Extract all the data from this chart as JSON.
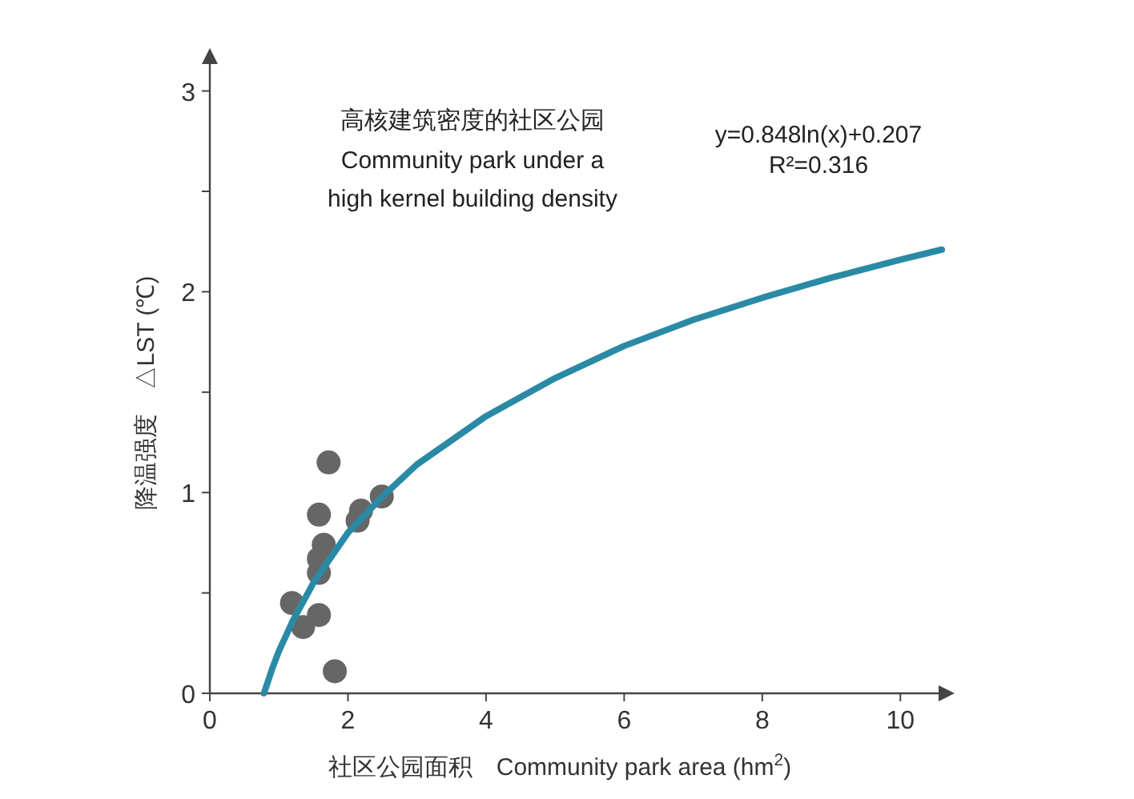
{
  "chart_data": {
    "type": "scatter",
    "xlabel": "社区公园面积　Community park area (hm$^{2}$)",
    "ylabel": "降温强度　△LST (℃)",
    "annotations": [
      "高核建筑密度的社区公园",
      "Community park under a",
      "high kernel building density",
      "y=0.848ln(x)+0.207",
      "R²=0.316"
    ],
    "xlim": [
      0,
      10.6
    ],
    "ylim": [
      0,
      3.15
    ],
    "xticks": [
      0,
      2,
      4,
      6,
      8,
      10
    ],
    "yticks": [
      0,
      {
        "value": 0.5,
        "label": null
      },
      1,
      {
        "value": 1.5,
        "label": null
      },
      2,
      {
        "value": 2.5,
        "label": null
      },
      3
    ],
    "grid": false,
    "series": [
      {
        "marker": "circle",
        "color": "#666666",
        "x": [
          1.19,
          1.35,
          1.58,
          1.58,
          1.58,
          1.58,
          1.65,
          1.72,
          1.81,
          2.14,
          2.19,
          2.49
        ],
        "values": [
          0.45,
          0.33,
          0.39,
          0.6,
          0.67,
          0.89,
          0.74,
          1.15,
          0.11,
          0.86,
          0.91,
          0.98
        ]
      },
      {
        "type": "line",
        "marker": "none",
        "color": "#2a8aa5",
        "line_style": "solid",
        "x": [
          0.784,
          0.9,
          1,
          1.2,
          1.5,
          2,
          2.5,
          3,
          4,
          5,
          6,
          7,
          8,
          9,
          10,
          10.6
        ],
        "values": [
          0,
          0.12,
          0.21,
          0.36,
          0.55,
          0.8,
          0.98,
          1.14,
          1.38,
          1.57,
          1.73,
          1.86,
          1.97,
          2.07,
          2.16,
          2.21
        ]
      }
    ]
  }
}
